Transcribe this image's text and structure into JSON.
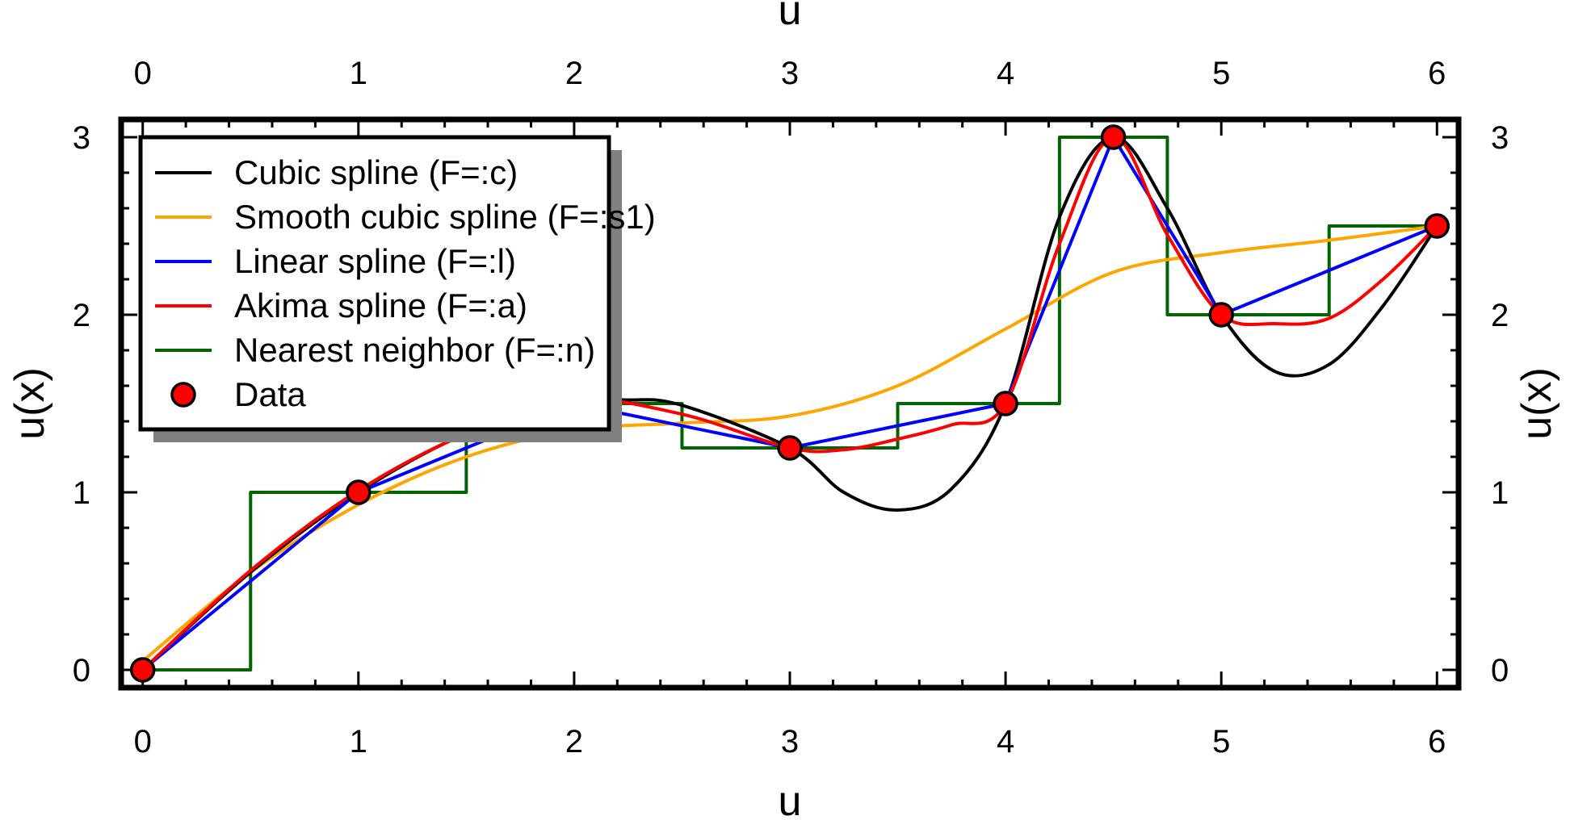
{
  "chart_data": {
    "type": "line",
    "xlabel": "u",
    "ylabel": "u(x)",
    "xlim": [
      -0.1,
      6.1
    ],
    "ylim": [
      -0.1,
      3.1
    ],
    "x_ticks": [
      "0",
      "1",
      "2",
      "3",
      "4",
      "5",
      "6"
    ],
    "y_ticks": [
      "0",
      "1",
      "2",
      "3"
    ],
    "grid": false,
    "legend_position": "top-left",
    "points": {
      "name": "Data",
      "x": [
        0,
        1,
        2,
        3,
        4,
        4.5,
        5,
        6
      ],
      "y": [
        0,
        1,
        1.5,
        1.25,
        1.5,
        3,
        2,
        2.5
      ],
      "color": "#ff0000"
    },
    "series": [
      {
        "name": "Cubic spline (F=:c)",
        "color": "#000000",
        "x": [
          0,
          0.5,
          1,
          1.5,
          2,
          2.25,
          2.5,
          3,
          3.25,
          3.5,
          3.75,
          4,
          4.25,
          4.5,
          4.75,
          5,
          5.25,
          5.5,
          5.75,
          6
        ],
        "y": [
          0,
          0.55,
          1,
          1.33,
          1.5,
          1.52,
          1.49,
          1.25,
          1.0,
          0.9,
          1.02,
          1.5,
          2.55,
          3.0,
          2.6,
          2.0,
          1.68,
          1.72,
          2.05,
          2.5
        ]
      },
      {
        "name": "Smooth cubic spline (F=:s1)",
        "color": "#ffa500",
        "x": [
          0,
          0.5,
          1,
          1.5,
          2,
          2.5,
          3,
          3.5,
          4,
          4.5,
          5,
          5.5,
          6
        ],
        "y": [
          0.05,
          0.55,
          0.93,
          1.2,
          1.35,
          1.39,
          1.43,
          1.6,
          1.92,
          2.24,
          2.35,
          2.42,
          2.5
        ]
      },
      {
        "name": "Linear spline (F=:l)",
        "color": "#0000ff",
        "x": [
          0,
          1,
          2,
          3,
          4,
          4.5,
          5,
          6
        ],
        "y": [
          0,
          1,
          1.5,
          1.25,
          1.5,
          3,
          2,
          2.5
        ]
      },
      {
        "name": "Akima spline (F=:a)",
        "color": "#ff0000",
        "x": [
          0,
          0.5,
          1,
          1.5,
          2,
          2.5,
          3,
          3.25,
          3.5,
          3.75,
          4,
          4.25,
          4.5,
          4.75,
          5,
          5.25,
          5.5,
          5.75,
          6
        ],
        "y": [
          0,
          0.56,
          1.01,
          1.33,
          1.52,
          1.44,
          1.25,
          1.24,
          1.3,
          1.38,
          1.5,
          2.4,
          3.0,
          2.45,
          2.0,
          1.95,
          1.98,
          2.2,
          2.5
        ]
      },
      {
        "name": "Nearest neighbor (F=:n)",
        "color": "#006400",
        "step": true,
        "x": [
          0,
          0.5,
          0.5,
          1.5,
          1.5,
          2.5,
          2.5,
          3.5,
          3.5,
          4.25,
          4.25,
          4.75,
          4.75,
          5.5,
          5.5,
          6
        ],
        "y": [
          0,
          0,
          1,
          1,
          1.5,
          1.5,
          1.25,
          1.25,
          1.5,
          1.5,
          3,
          3,
          2,
          2,
          2.5,
          2.5
        ]
      }
    ]
  }
}
